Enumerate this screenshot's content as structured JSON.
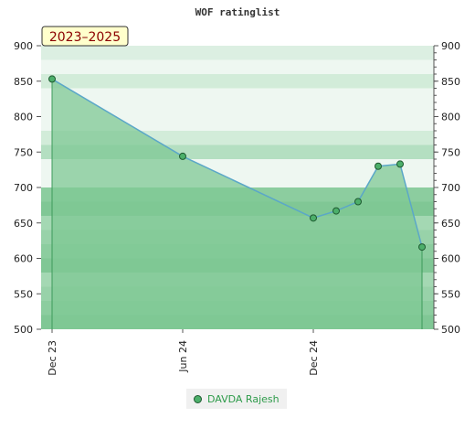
{
  "chart_data": {
    "type": "area",
    "title": "WOF ratinglist",
    "range_label": "2023–2025",
    "x_ticks": [
      "Dec 23",
      "Jun 24",
      "Dec 24"
    ],
    "ylim": [
      500,
      900
    ],
    "y_ticks": [
      500,
      550,
      600,
      650,
      700,
      750,
      800,
      850,
      900
    ],
    "series": [
      {
        "name": "DAVDA Rajesh",
        "x": [
          "Dec 23",
          "Jun 24",
          "Dec 24",
          "Jan 25",
          "Feb 25",
          "Mar 25",
          "Apr 25",
          "May 25"
        ],
        "values": [
          853,
          744,
          657,
          667,
          680,
          730,
          733,
          616
        ]
      }
    ],
    "legend_position": "bottom-center",
    "grid": true
  },
  "colors": {
    "area_fill": "#7fc894",
    "line": "#5ba7c8",
    "marker": "#4caf6a",
    "marker_edge": "#1e5a30",
    "badge_bg": "#ffffcc",
    "legend_text": "#2e9b4a"
  }
}
